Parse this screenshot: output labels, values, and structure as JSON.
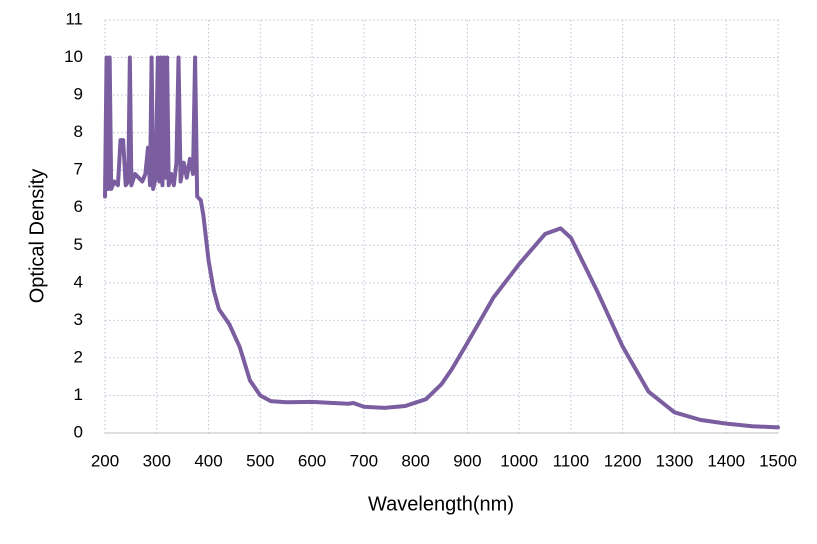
{
  "chart_data": {
    "type": "line",
    "xlabel": "Wavelength(nm)",
    "ylabel": "Optical Density",
    "xlim": [
      200,
      1500
    ],
    "xticks": [
      200,
      300,
      400,
      500,
      600,
      700,
      800,
      900,
      1000,
      1100,
      1200,
      1300,
      1400,
      1500
    ],
    "ylim": [
      0,
      11
    ],
    "yticks": [
      0,
      1,
      2,
      3,
      4,
      5,
      6,
      7,
      8,
      9,
      10,
      11
    ],
    "grid": true,
    "series": [
      {
        "name": "Optical Density",
        "color": "#7b5ea0",
        "x": [
          200,
          203,
          206,
          209,
          212,
          218,
          225,
          230,
          235,
          240,
          245,
          248,
          251,
          258,
          265,
          272,
          278,
          283,
          287,
          290,
          293,
          298,
          302,
          305,
          308,
          311,
          314,
          317,
          320,
          323,
          328,
          333,
          338,
          342,
          346,
          352,
          358,
          364,
          370,
          374,
          378,
          385,
          390,
          400,
          410,
          420,
          440,
          460,
          480,
          500,
          520,
          550,
          600,
          640,
          670,
          680,
          700,
          740,
          780,
          820,
          850,
          870,
          900,
          950,
          1000,
          1050,
          1080,
          1100,
          1150,
          1200,
          1250,
          1300,
          1350,
          1400,
          1450,
          1500
        ],
        "values": [
          6.3,
          10,
          6.5,
          10,
          6.5,
          6.7,
          6.6,
          7.8,
          7.8,
          6.6,
          6.7,
          10,
          6.6,
          6.9,
          6.8,
          6.7,
          6.9,
          7.6,
          6.6,
          10,
          6.5,
          6.8,
          10,
          6.7,
          10,
          6.6,
          10,
          6.8,
          10,
          6.6,
          6.9,
          6.6,
          7.2,
          10,
          6.7,
          7.2,
          6.8,
          7.3,
          6.9,
          10,
          6.3,
          6.2,
          5.8,
          4.6,
          3.8,
          3.3,
          2.9,
          2.3,
          1.4,
          1.0,
          0.85,
          0.82,
          0.83,
          0.8,
          0.78,
          0.8,
          0.7,
          0.67,
          0.72,
          0.9,
          1.3,
          1.7,
          2.4,
          3.6,
          4.5,
          5.3,
          5.45,
          5.2,
          3.8,
          2.3,
          1.1,
          0.55,
          0.35,
          0.25,
          0.18,
          0.15
        ]
      }
    ]
  }
}
